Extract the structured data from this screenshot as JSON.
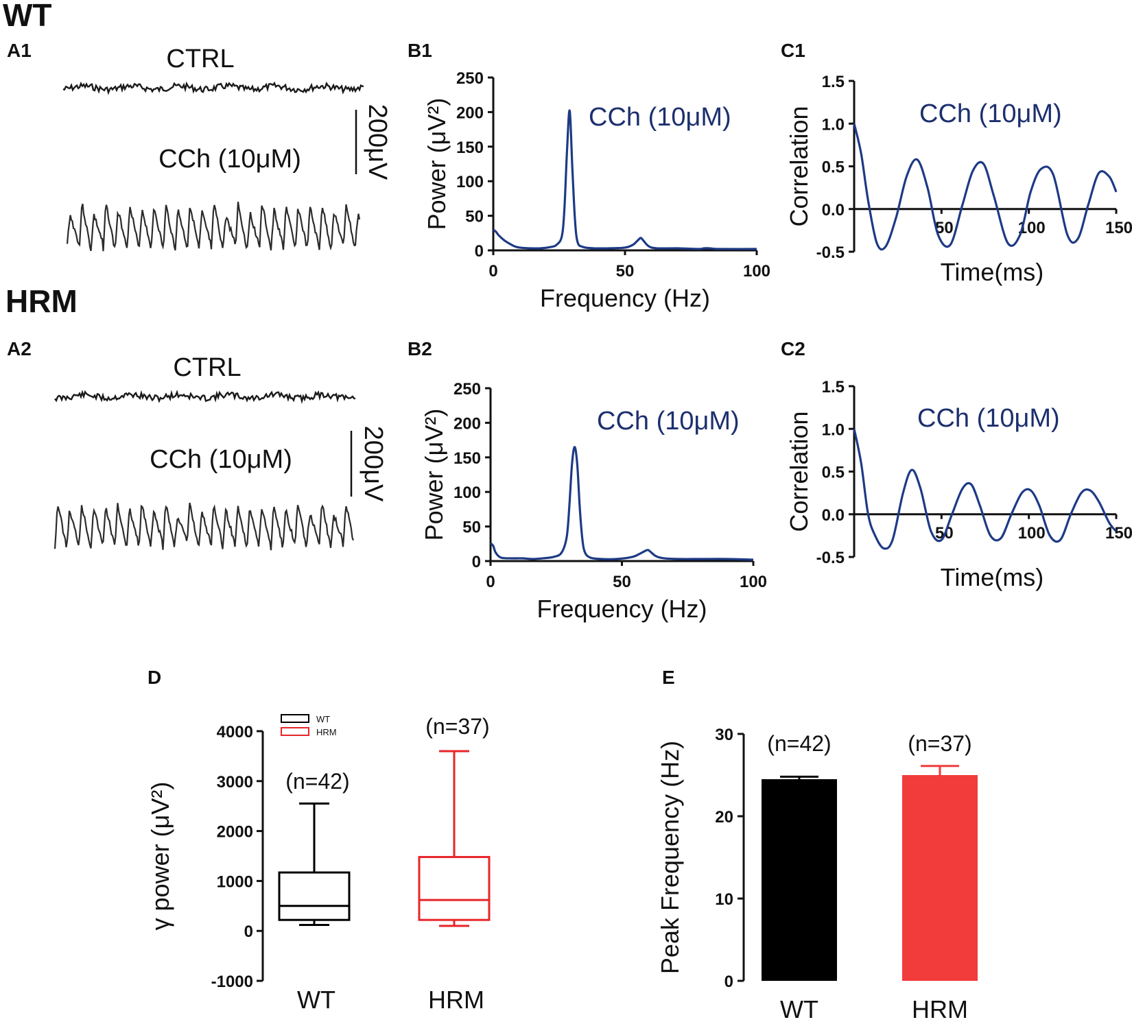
{
  "groups": {
    "wt": "WT",
    "hrm": "HRM"
  },
  "panels": {
    "a1": "A1",
    "a2": "A2",
    "b1": "B1",
    "b2": "B2",
    "c1": "C1",
    "c2": "C2",
    "d": "D",
    "e": "E"
  },
  "traces": {
    "ctrl_label": "CTRL",
    "cch_label": "CCh (10μM)",
    "scale_bar_label": "200μV",
    "scale_bar_value_uV": 200
  },
  "colors": {
    "spectrum": "#1d3a85",
    "wt": "#000000",
    "hrm": "#e8252a",
    "hrm_bar": "#f23b3b"
  },
  "chart_data": [
    {
      "id": "B1",
      "type": "line",
      "title": "CCh (10μM)",
      "xlabel": "Frequency (Hz)",
      "ylabel": "Power (μV²)",
      "xlim": [
        0,
        100
      ],
      "ylim": [
        0,
        250
      ],
      "xticks": [
        0,
        50,
        100
      ],
      "yticks": [
        0,
        50,
        100,
        150,
        200,
        250
      ],
      "series": [
        {
          "name": "CCh (10μM)",
          "x": [
            0,
            1,
            2,
            4,
            6,
            8,
            10,
            14,
            18,
            22,
            24,
            26,
            27,
            28,
            29,
            30,
            31,
            32,
            34,
            38,
            44,
            50,
            53,
            55,
            56,
            57,
            59,
            62,
            70,
            78,
            80,
            82,
            86,
            100
          ],
          "y": [
            30,
            27,
            22,
            15,
            10,
            6,
            4,
            3,
            3,
            5,
            8,
            20,
            60,
            145,
            202,
            120,
            45,
            12,
            5,
            3,
            3,
            4,
            8,
            15,
            18,
            14,
            6,
            3,
            3,
            2,
            3,
            3,
            2,
            2
          ]
        }
      ]
    },
    {
      "id": "B2",
      "type": "line",
      "title": "CCh (10μM)",
      "xlabel": "Frequency (Hz)",
      "ylabel": "Power (μV²)",
      "xlim": [
        0,
        100
      ],
      "ylim": [
        0,
        250
      ],
      "xticks": [
        0,
        50,
        100
      ],
      "yticks": [
        0,
        50,
        100,
        150,
        200,
        250
      ],
      "series": [
        {
          "name": "CCh (10μM)",
          "x": [
            0,
            1,
            2,
            4,
            8,
            12,
            16,
            20,
            24,
            27,
            29,
            30,
            31,
            32,
            33,
            34,
            35,
            36,
            38,
            42,
            48,
            54,
            57,
            59,
            60,
            61,
            63,
            66,
            72,
            80,
            90,
            100
          ],
          "y": [
            26,
            22,
            12,
            5,
            4,
            4,
            3,
            4,
            6,
            12,
            35,
            80,
            140,
            165,
            140,
            75,
            30,
            12,
            5,
            3,
            3,
            6,
            11,
            15,
            16,
            13,
            7,
            4,
            3,
            3,
            3,
            2
          ]
        }
      ]
    },
    {
      "id": "C1",
      "type": "line",
      "title": "CCh (10μM)",
      "xlabel": "Time(ms)",
      "ylabel": "Correlation",
      "xlim": [
        0,
        150
      ],
      "ylim": [
        -0.5,
        1.5
      ],
      "xticks": [
        50,
        100,
        150
      ],
      "yticks": [
        -0.5,
        0.0,
        0.5,
        1.0,
        1.5
      ],
      "series": [
        {
          "name": "CCh (10μM)",
          "x": [
            0,
            4,
            8,
            13,
            18,
            24,
            30,
            36,
            42,
            48,
            55,
            62,
            68,
            74,
            80,
            88,
            95,
            101,
            107,
            114,
            122,
            128,
            134,
            140,
            146,
            150
          ],
          "y": [
            1.0,
            0.65,
            0.1,
            -0.4,
            -0.44,
            -0.1,
            0.38,
            0.58,
            0.25,
            -0.3,
            -0.42,
            0.05,
            0.45,
            0.53,
            0.15,
            -0.4,
            -0.3,
            0.2,
            0.47,
            0.4,
            -0.3,
            -0.35,
            0.05,
            0.42,
            0.38,
            0.2
          ]
        }
      ]
    },
    {
      "id": "C2",
      "type": "line",
      "title": "CCh (10μM)",
      "xlabel": "Time(ms)",
      "ylabel": "Correlation",
      "xlim": [
        0,
        150
      ],
      "ylim": [
        -0.5,
        1.5
      ],
      "xticks": [
        50,
        100,
        150
      ],
      "yticks": [
        -0.5,
        0.0,
        0.5,
        1.0,
        1.5
      ],
      "series": [
        {
          "name": "CCh (10μM)",
          "x": [
            0,
            4,
            8,
            12,
            17,
            22,
            28,
            33,
            38,
            44,
            50,
            56,
            62,
            67,
            72,
            78,
            84,
            90,
            96,
            101,
            106,
            112,
            118,
            124,
            130,
            135,
            140,
            146,
            150
          ],
          "y": [
            1.0,
            0.6,
            0.0,
            -0.25,
            -0.4,
            -0.3,
            0.25,
            0.52,
            0.3,
            -0.2,
            -0.3,
            0.0,
            0.3,
            0.35,
            0.1,
            -0.25,
            -0.28,
            0.0,
            0.25,
            0.28,
            0.1,
            -0.25,
            -0.3,
            0.0,
            0.25,
            0.28,
            0.15,
            -0.1,
            -0.2
          ]
        }
      ]
    },
    {
      "id": "D",
      "type": "box",
      "ylabel": "γ power (μV²)",
      "ylim": [
        -1000,
        4000
      ],
      "yticks": [
        -1000,
        0,
        1000,
        2000,
        3000,
        4000
      ],
      "categories": [
        "WT",
        "HRM"
      ],
      "legend": [
        "WT",
        "HRM"
      ],
      "boxes": [
        {
          "name": "WT",
          "min": 120,
          "q1": 220,
          "median": 500,
          "q3": 1170,
          "max": 2550,
          "n_label": "(n=42)"
        },
        {
          "name": "HRM",
          "min": 100,
          "q1": 220,
          "median": 620,
          "q3": 1480,
          "max": 3600,
          "n_label": "(n=37)"
        }
      ]
    },
    {
      "id": "E",
      "type": "bar",
      "ylabel": "Peak Frequency (Hz)",
      "ylim": [
        0,
        30
      ],
      "yticks": [
        0,
        10,
        20,
        30
      ],
      "categories": [
        "WT",
        "HRM"
      ],
      "values": [
        24.5,
        25.0
      ],
      "errors": [
        0.3,
        1.1
      ],
      "n_labels": [
        "(n=42)",
        "(n=37)"
      ]
    }
  ]
}
